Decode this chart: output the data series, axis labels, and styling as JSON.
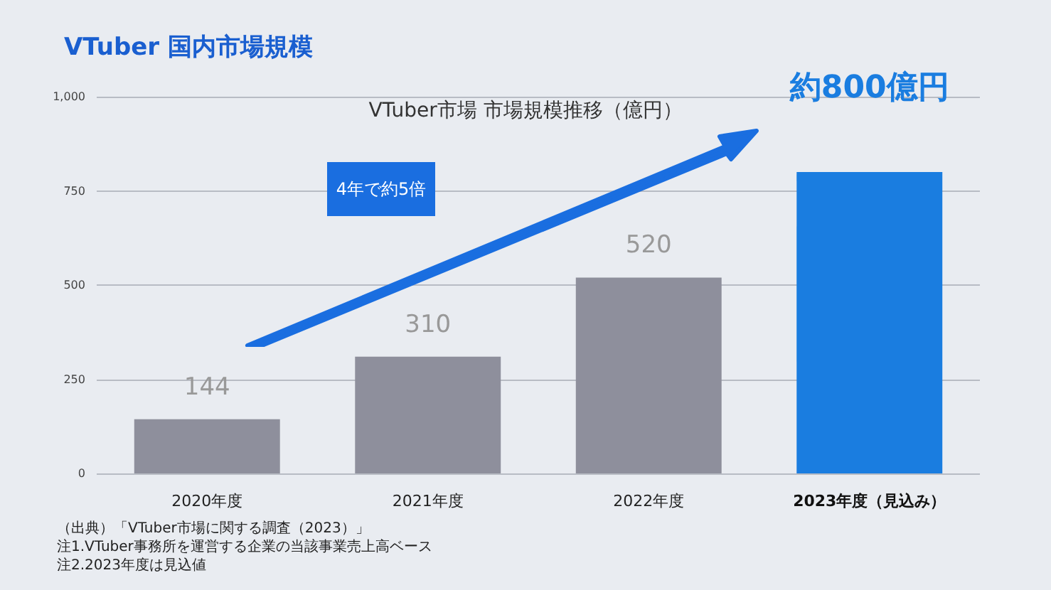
{
  "chart_data": {
    "type": "bar",
    "title": "VTuber 国内市場規模",
    "subtitle": "VTuber市場 市場規模推移（億円）",
    "categories": [
      "2020年度",
      "2021年度",
      "2022年度",
      "2023年度（見込み）"
    ],
    "values": [
      144,
      310,
      520,
      800
    ],
    "colors": [
      "#8e8f9c",
      "#8e8f9c",
      "#8e8f9c",
      "#1a7de0"
    ],
    "value_labels": [
      "144",
      "310",
      "520",
      "約800億円"
    ],
    "ylim": [
      0,
      1000
    ],
    "yticks": [
      0,
      250,
      500,
      750,
      {
        "value": 1000,
        "label": "1,000"
      }
    ],
    "grid": "y",
    "annotations": [
      "4年で約5倍",
      "（出典）「VTuber市場に関する調査（2023）」",
      "注1.VTuber事務所を運営する企業の当該事業売上高ベース",
      "注2.2023年度は見込値"
    ]
  }
}
